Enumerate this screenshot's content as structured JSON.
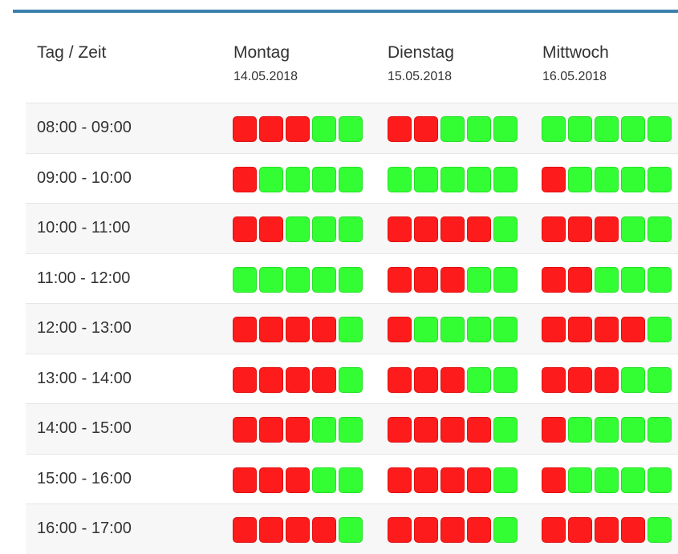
{
  "header": {
    "label": "Tag / Zeit",
    "days": [
      {
        "name": "Montag",
        "date": "14.05.2018"
      },
      {
        "name": "Dienstag",
        "date": "15.05.2018"
      },
      {
        "name": "Mittwoch",
        "date": "16.05.2018"
      }
    ]
  },
  "colors": {
    "busy": "#fe1b1b",
    "free": "#33fe33",
    "accent": "#3c80ad"
  },
  "rows": [
    {
      "time": "08:00 - 09:00",
      "days": [
        [
          "busy",
          "busy",
          "busy",
          "free",
          "free"
        ],
        [
          "busy",
          "busy",
          "free",
          "free",
          "free"
        ],
        [
          "free",
          "free",
          "free",
          "free",
          "free"
        ]
      ]
    },
    {
      "time": "09:00 - 10:00",
      "days": [
        [
          "busy",
          "free",
          "free",
          "free",
          "free"
        ],
        [
          "free",
          "free",
          "free",
          "free",
          "free"
        ],
        [
          "busy",
          "free",
          "free",
          "free",
          "free"
        ]
      ]
    },
    {
      "time": "10:00 - 11:00",
      "days": [
        [
          "busy",
          "busy",
          "free",
          "free",
          "free"
        ],
        [
          "busy",
          "busy",
          "busy",
          "busy",
          "free"
        ],
        [
          "busy",
          "busy",
          "busy",
          "free",
          "free"
        ]
      ]
    },
    {
      "time": "11:00 - 12:00",
      "days": [
        [
          "free",
          "free",
          "free",
          "free",
          "free"
        ],
        [
          "busy",
          "busy",
          "busy",
          "free",
          "free"
        ],
        [
          "busy",
          "busy",
          "free",
          "free",
          "free"
        ]
      ]
    },
    {
      "time": "12:00 - 13:00",
      "days": [
        [
          "busy",
          "busy",
          "busy",
          "busy",
          "free"
        ],
        [
          "busy",
          "free",
          "free",
          "free",
          "free"
        ],
        [
          "busy",
          "busy",
          "busy",
          "busy",
          "free"
        ]
      ]
    },
    {
      "time": "13:00 - 14:00",
      "days": [
        [
          "busy",
          "busy",
          "busy",
          "busy",
          "free"
        ],
        [
          "busy",
          "busy",
          "busy",
          "free",
          "free"
        ],
        [
          "busy",
          "busy",
          "busy",
          "free",
          "free"
        ]
      ]
    },
    {
      "time": "14:00 - 15:00",
      "days": [
        [
          "busy",
          "busy",
          "busy",
          "free",
          "free"
        ],
        [
          "busy",
          "busy",
          "busy",
          "busy",
          "free"
        ],
        [
          "busy",
          "free",
          "free",
          "free",
          "free"
        ]
      ]
    },
    {
      "time": "15:00 - 16:00",
      "days": [
        [
          "busy",
          "busy",
          "busy",
          "free",
          "free"
        ],
        [
          "busy",
          "busy",
          "busy",
          "busy",
          "free"
        ],
        [
          "busy",
          "free",
          "free",
          "free",
          "free"
        ]
      ]
    },
    {
      "time": "16:00 - 17:00",
      "days": [
        [
          "busy",
          "busy",
          "busy",
          "busy",
          "free"
        ],
        [
          "busy",
          "busy",
          "busy",
          "busy",
          "free"
        ],
        [
          "busy",
          "busy",
          "busy",
          "busy",
          "free"
        ]
      ]
    }
  ]
}
